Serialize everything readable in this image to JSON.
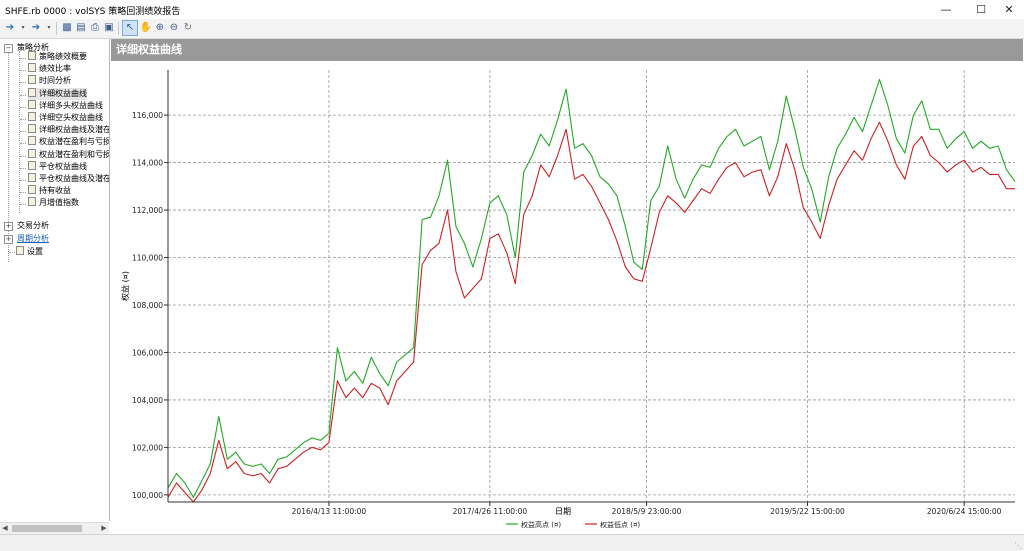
{
  "window": {
    "title": "SHFE.rb 0000 : volSYS 策略回测绩效报告"
  },
  "tree": {
    "root": {
      "label": "策略分析"
    },
    "children": [
      {
        "label": "策略绩效概要"
      },
      {
        "label": "绩效比率"
      },
      {
        "label": "时间分析"
      },
      {
        "label": "详细权益曲线",
        "selected": true
      },
      {
        "label": "详细多头权益曲线"
      },
      {
        "label": "详细空头权益曲线"
      },
      {
        "label": "详细权益曲线及潜在"
      },
      {
        "label": "权益潜在盈利与亏损"
      },
      {
        "label": "权益潜在盈利和亏损"
      },
      {
        "label": "平仓权益曲线"
      },
      {
        "label": "平仓权益曲线及潜在"
      },
      {
        "label": "持有收益"
      },
      {
        "label": "月增值指数"
      }
    ],
    "trade_analysis": {
      "label": "交易分析"
    },
    "period_analysis": {
      "label": "周期分析"
    },
    "settings": {
      "label": "设置"
    }
  },
  "panel": {
    "title": "详细权益曲线"
  },
  "chart_data": {
    "type": "line",
    "xlabel": "日期",
    "ylabel": "权益 (¤)",
    "ylim": [
      99700,
      117900
    ],
    "yticks": [
      100000,
      102000,
      104000,
      106000,
      108000,
      110000,
      112000,
      114000,
      116000
    ],
    "ytick_labels": [
      "100,000",
      "102,000",
      "104,000",
      "106,000",
      "108,000",
      "110,000",
      "112,000",
      "114,000",
      "116,000"
    ],
    "xrange": [
      0,
      100
    ],
    "xticks": [
      {
        "x": 19,
        "label": "2016/4/13 11:00:00"
      },
      {
        "x": 38,
        "label": "2017/4/26 11:00:00"
      },
      {
        "x": 56.5,
        "label": "2018/5/9 23:00:00"
      },
      {
        "x": 75.5,
        "label": "2019/5/22 15:00:00"
      },
      {
        "x": 94,
        "label": "2020/6/24 15:00:00"
      }
    ],
    "grid": true,
    "legend_position": "bottom",
    "x": [
      0,
      1,
      2,
      3,
      4,
      5,
      6,
      7,
      8,
      9,
      10,
      11,
      12,
      13,
      14,
      15,
      16,
      17,
      18,
      19,
      20,
      21,
      22,
      23,
      24,
      25,
      26,
      27,
      28,
      29,
      30,
      31,
      32,
      33,
      34,
      35,
      36,
      37,
      38,
      39,
      40,
      41,
      42,
      43,
      44,
      45,
      46,
      47,
      48,
      49,
      50,
      51,
      52,
      53,
      54,
      55,
      56,
      57,
      58,
      59,
      60,
      61,
      62,
      63,
      64,
      65,
      66,
      67,
      68,
      69,
      70,
      71,
      72,
      73,
      74,
      75,
      76,
      77,
      78,
      79,
      80,
      81,
      82,
      83,
      84,
      85,
      86,
      87,
      88,
      89,
      90,
      91,
      92,
      93,
      94,
      95,
      96,
      97,
      98,
      99,
      100
    ],
    "series": [
      {
        "name": "权益高点 (¤)",
        "color": "#22aa22",
        "values": [
          100300,
          100900,
          100500,
          99900,
          100600,
          101300,
          103300,
          101500,
          101800,
          101300,
          101200,
          101300,
          100900,
          101500,
          101600,
          101900,
          102200,
          102400,
          102300,
          102600,
          106200,
          104800,
          105200,
          104700,
          105800,
          105100,
          104600,
          105600,
          105900,
          106200,
          111600,
          111700,
          112600,
          114100,
          111300,
          110600,
          109600,
          110800,
          112300,
          112600,
          111800,
          110000,
          113600,
          114300,
          115200,
          114700,
          115800,
          117100,
          114600,
          114800,
          114300,
          113400,
          113100,
          112600,
          111300,
          109800,
          109500,
          112400,
          113000,
          114700,
          113300,
          112500,
          113300,
          113900,
          113800,
          114600,
          115100,
          115400,
          114700,
          114900,
          115100,
          113700,
          114900,
          116800,
          115400,
          113800,
          112900,
          111500,
          113400,
          114600,
          115200,
          115900,
          115300,
          116400,
          117500,
          116400,
          115000,
          114400,
          116000,
          116600,
          115400,
          115400,
          114600,
          115000,
          115300,
          114600,
          114900,
          114600,
          114700,
          113700,
          113200
        ]
      },
      {
        "name": "权益低点 (¤)",
        "color": "#cc2222",
        "values": [
          99900,
          100500,
          100100,
          99700,
          100200,
          100900,
          102300,
          101100,
          101400,
          100900,
          100800,
          100900,
          100500,
          101100,
          101200,
          101500,
          101800,
          102000,
          101900,
          102200,
          104800,
          104100,
          104500,
          104100,
          104700,
          104500,
          103800,
          104800,
          105200,
          105600,
          109700,
          110300,
          110600,
          112000,
          109400,
          108300,
          108700,
          109100,
          110800,
          111000,
          110200,
          108900,
          111800,
          112600,
          113900,
          113400,
          114300,
          115400,
          113300,
          113500,
          113000,
          112300,
          111600,
          110700,
          109600,
          109100,
          109000,
          110400,
          111900,
          112600,
          112300,
          111900,
          112400,
          112900,
          112700,
          113300,
          113800,
          114000,
          113400,
          113600,
          113700,
          112600,
          113400,
          114800,
          113700,
          112100,
          111500,
          110800,
          112200,
          113300,
          113900,
          114500,
          114100,
          115000,
          115700,
          114900,
          113900,
          113300,
          114700,
          115100,
          114300,
          114000,
          113600,
          113900,
          114100,
          113600,
          113800,
          113500,
          113500,
          112900,
          112900
        ]
      }
    ]
  }
}
